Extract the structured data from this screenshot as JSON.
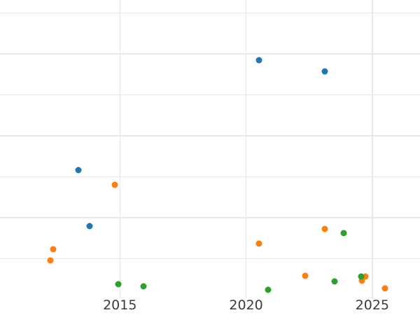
{
  "chart_data": {
    "type": "scatter",
    "title": "",
    "xlabel": "",
    "ylabel": "",
    "grid": true,
    "legend_position": "none",
    "x_ticks": [
      2015,
      2020,
      2025
    ],
    "x_tick_labels": [
      "2015",
      "2020",
      "2025"
    ],
    "x_range": [
      2010.25,
      2026.89
    ],
    "y_range": [
      0.03,
      7.32
    ],
    "y_gridlines": [
      1,
      2,
      3,
      4,
      5,
      6,
      7
    ],
    "y_units_note": "y-axis tick labels cropped out of view; y values expressed in gridline units counted up from below the visible plot edge",
    "marker_diameter_px": 9,
    "colors": {
      "background": "#ffffff",
      "gridline": "#e8e8e8",
      "tick_label": "#3b3b3b",
      "series_blue": "#1f77b4",
      "series_orange": "#ff7f0e",
      "series_green": "#2ca02c"
    },
    "series": [
      {
        "name": "blue",
        "color": "#1f77b4",
        "points": [
          [
            2013.36,
            3.16
          ],
          [
            2013.8,
            1.79
          ],
          [
            2020.5,
            5.85
          ],
          [
            2023.13,
            5.57
          ]
        ]
      },
      {
        "name": "orange",
        "color": "#ff7f0e",
        "points": [
          [
            2012.25,
            0.95
          ],
          [
            2012.36,
            1.22
          ],
          [
            2014.8,
            2.8
          ],
          [
            2020.5,
            1.36
          ],
          [
            2022.33,
            0.57
          ],
          [
            2023.13,
            1.72
          ],
          [
            2024.6,
            0.45
          ],
          [
            2024.74,
            0.56
          ],
          [
            2025.49,
            0.27
          ]
        ]
      },
      {
        "name": "green",
        "color": "#2ca02c",
        "points": [
          [
            2014.94,
            0.37
          ],
          [
            2015.93,
            0.32
          ],
          [
            2020.86,
            0.24
          ],
          [
            2023.52,
            0.44
          ],
          [
            2023.88,
            1.63
          ],
          [
            2024.55,
            0.56
          ]
        ]
      }
    ]
  }
}
